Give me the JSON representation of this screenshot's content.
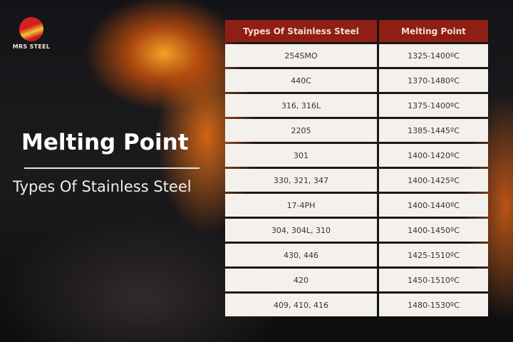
{
  "logo": {
    "text": "MRS STEEL"
  },
  "title": "Melting Point",
  "subtitle": "Types Of Stainless Steel",
  "colors": {
    "header": "#8f1f14",
    "cell": "#f4f1ec"
  },
  "table": {
    "headers": [
      "Types Of Stainless Steel",
      "Melting Point"
    ],
    "rows": [
      [
        "254SMO",
        "1325-1400ºC"
      ],
      [
        "440C",
        "1370-1480ºC"
      ],
      [
        "316, 316L",
        "1375-1400ºC"
      ],
      [
        "2205",
        "1385-1445ºC"
      ],
      [
        "301",
        "1400-1420ºC"
      ],
      [
        "330, 321, 347",
        "1400-1425ºC"
      ],
      [
        "17-4PH",
        "1400-1440ºC"
      ],
      [
        "304, 304L, 310",
        "1400-1450ºC"
      ],
      [
        "430, 446",
        "1425-1510ºC"
      ],
      [
        "420",
        "1450-1510ºC"
      ],
      [
        "409, 410, 416",
        "1480-1530ºC"
      ]
    ]
  }
}
